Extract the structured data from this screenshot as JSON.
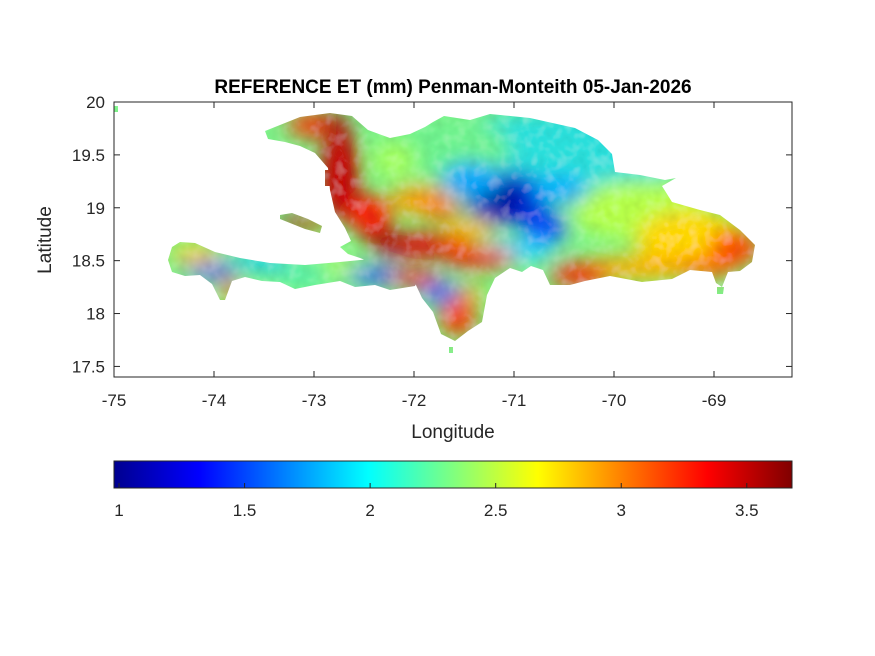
{
  "map": {
    "title": "REFERENCE ET (mm) Penman-Monteith 05-Jan-2026",
    "xlabel": "Longitude",
    "ylabel": "Latitude",
    "xlim": [
      -75,
      -68.22
    ],
    "ylim": [
      17.4,
      20.0
    ],
    "xticks": [
      -75,
      -74,
      -73,
      -72,
      -71,
      -70,
      -69
    ],
    "xtick_labels": [
      "-75",
      "-74",
      "-73",
      "-72",
      "-71",
      "-70",
      "-69"
    ],
    "yticks": [
      17.5,
      18,
      18.5,
      19,
      19.5,
      20
    ],
    "ytick_labels": [
      "17.5",
      "18",
      "18.5",
      "19",
      "19.5",
      "20"
    ],
    "region": "Hispaniola (Haiti and Dominican Republic)",
    "rendering": "filled raster of reference evapotranspiration over land; sea left white"
  },
  "colorbar": {
    "colormap": "jet",
    "range": [
      0.98,
      3.68
    ],
    "ticks": [
      1,
      1.5,
      2,
      2.5,
      3,
      3.5
    ],
    "tick_labels": [
      "1",
      "1.5",
      "2",
      "2.5",
      "3",
      "3.5"
    ],
    "stops": [
      "#00008f",
      "#0000ff",
      "#00ffff",
      "#ffff00",
      "#ff0000",
      "#800000"
    ]
  },
  "chart_data": {
    "type": "heatmap",
    "title": "REFERENCE ET (mm) Penman-Monteith 05-Jan-2026",
    "xlabel": "Longitude",
    "ylabel": "Latitude",
    "xlim": [
      -75,
      -68.22
    ],
    "ylim": [
      17.4,
      20.0
    ],
    "value_range": [
      0.98,
      3.68
    ],
    "colormap": "jet",
    "approx_regions": [
      {
        "lon": -71.15,
        "lat": 19.05,
        "value": 1.2
      },
      {
        "lon": -70.85,
        "lat": 18.8,
        "value": 1.5
      },
      {
        "lon": -74.0,
        "lat": 18.4,
        "value": 1.6
      },
      {
        "lon": -72.5,
        "lat": 18.35,
        "value": 1.5
      },
      {
        "lon": -73.0,
        "lat": 19.7,
        "value": 3.3
      },
      {
        "lon": -72.8,
        "lat": 19.2,
        "value": 3.6
      },
      {
        "lon": -72.0,
        "lat": 18.6,
        "value": 3.5
      },
      {
        "lon": -71.7,
        "lat": 18.0,
        "value": 3.2
      },
      {
        "lon": -69.0,
        "lat": 18.6,
        "value": 3.3
      },
      {
        "lon": -70.3,
        "lat": 19.5,
        "value": 2.1
      },
      {
        "lon": -73.5,
        "lat": 18.55,
        "value": 2.5
      }
    ]
  }
}
